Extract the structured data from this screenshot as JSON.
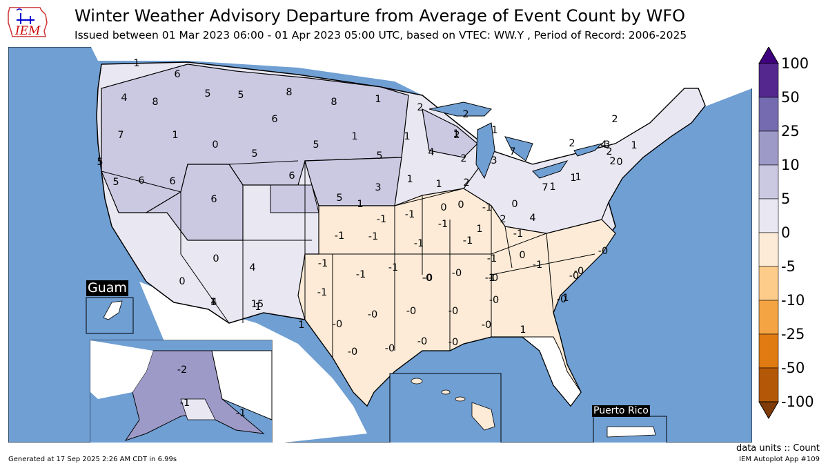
{
  "logo": {
    "text": "IEM",
    "colors": {
      "text": "#cc0000",
      "icon": "#0000cc"
    }
  },
  "title": "Winter Weather Advisory Departure from Average of Event Count by WFO",
  "subtitle": "Issued between 01 Mar 2023 06:00 - 01 Apr 2023 05:00 UTC, based on VTEC: WW.Y  , Period of Record: 2006-2025",
  "insets": {
    "guam": "Guam",
    "puerto_rico": "Puerto Rico"
  },
  "colorbar": {
    "ticks": [
      "100",
      "50",
      "25",
      "10",
      "5",
      "0",
      "-5",
      "-10",
      "-25",
      "-50",
      "-100"
    ],
    "colors": [
      "#54278f",
      "#756bb1",
      "#9e9ac8",
      "#cbc9e2",
      "#e8e7f2",
      "#fdebd7",
      "#fdcc8a",
      "#f4a442",
      "#e07b12",
      "#b35806"
    ],
    "extend_high": "#3f007d",
    "extend_low": "#7f3b08"
  },
  "units_label": "data units :: Count",
  "footer": {
    "generated": "Generated at 17 Sep 2025 2:26 AM CDT in 6.99s",
    "app": "IEM Autoplot App #109"
  },
  "map_colors": {
    "ocean": "#6f9fd3",
    "land_none": "#ffffff"
  },
  "wfo_values": [
    "1",
    "6",
    "4",
    "8",
    "5",
    "5",
    "8",
    "8",
    "1",
    "2",
    "6",
    "7",
    "1",
    "0",
    "2",
    "1",
    "1",
    "1",
    "2",
    "5",
    "1",
    "2",
    "5",
    "4",
    "5",
    "6",
    "5",
    "5",
    "6",
    "6",
    "6",
    "5",
    "7",
    "3",
    "7",
    "2",
    "2",
    "4",
    "2",
    "3",
    "1",
    "2",
    "1",
    "1",
    "2",
    "1",
    "1",
    "1",
    "0",
    "3",
    "4",
    "2",
    "1",
    "0",
    "-1",
    "-1",
    "-1",
    "0",
    "1",
    "-1",
    "-1",
    "-1",
    "-1",
    "-1",
    "-1",
    "0",
    "-1",
    "-1",
    "0",
    "-1",
    "-1",
    "-0",
    "-1",
    "-1",
    "-1",
    "-0",
    "-0",
    "-0",
    "-0",
    "-0",
    "-0",
    "-0",
    "-0",
    "-0",
    "-0",
    "-0",
    "-0",
    "-0",
    "-0",
    "-0",
    "-0",
    "-0",
    "1",
    "1",
    "0",
    "4",
    "1",
    "0",
    "1",
    "1",
    "15",
    "4",
    "-2",
    "-1",
    "-1"
  ]
}
